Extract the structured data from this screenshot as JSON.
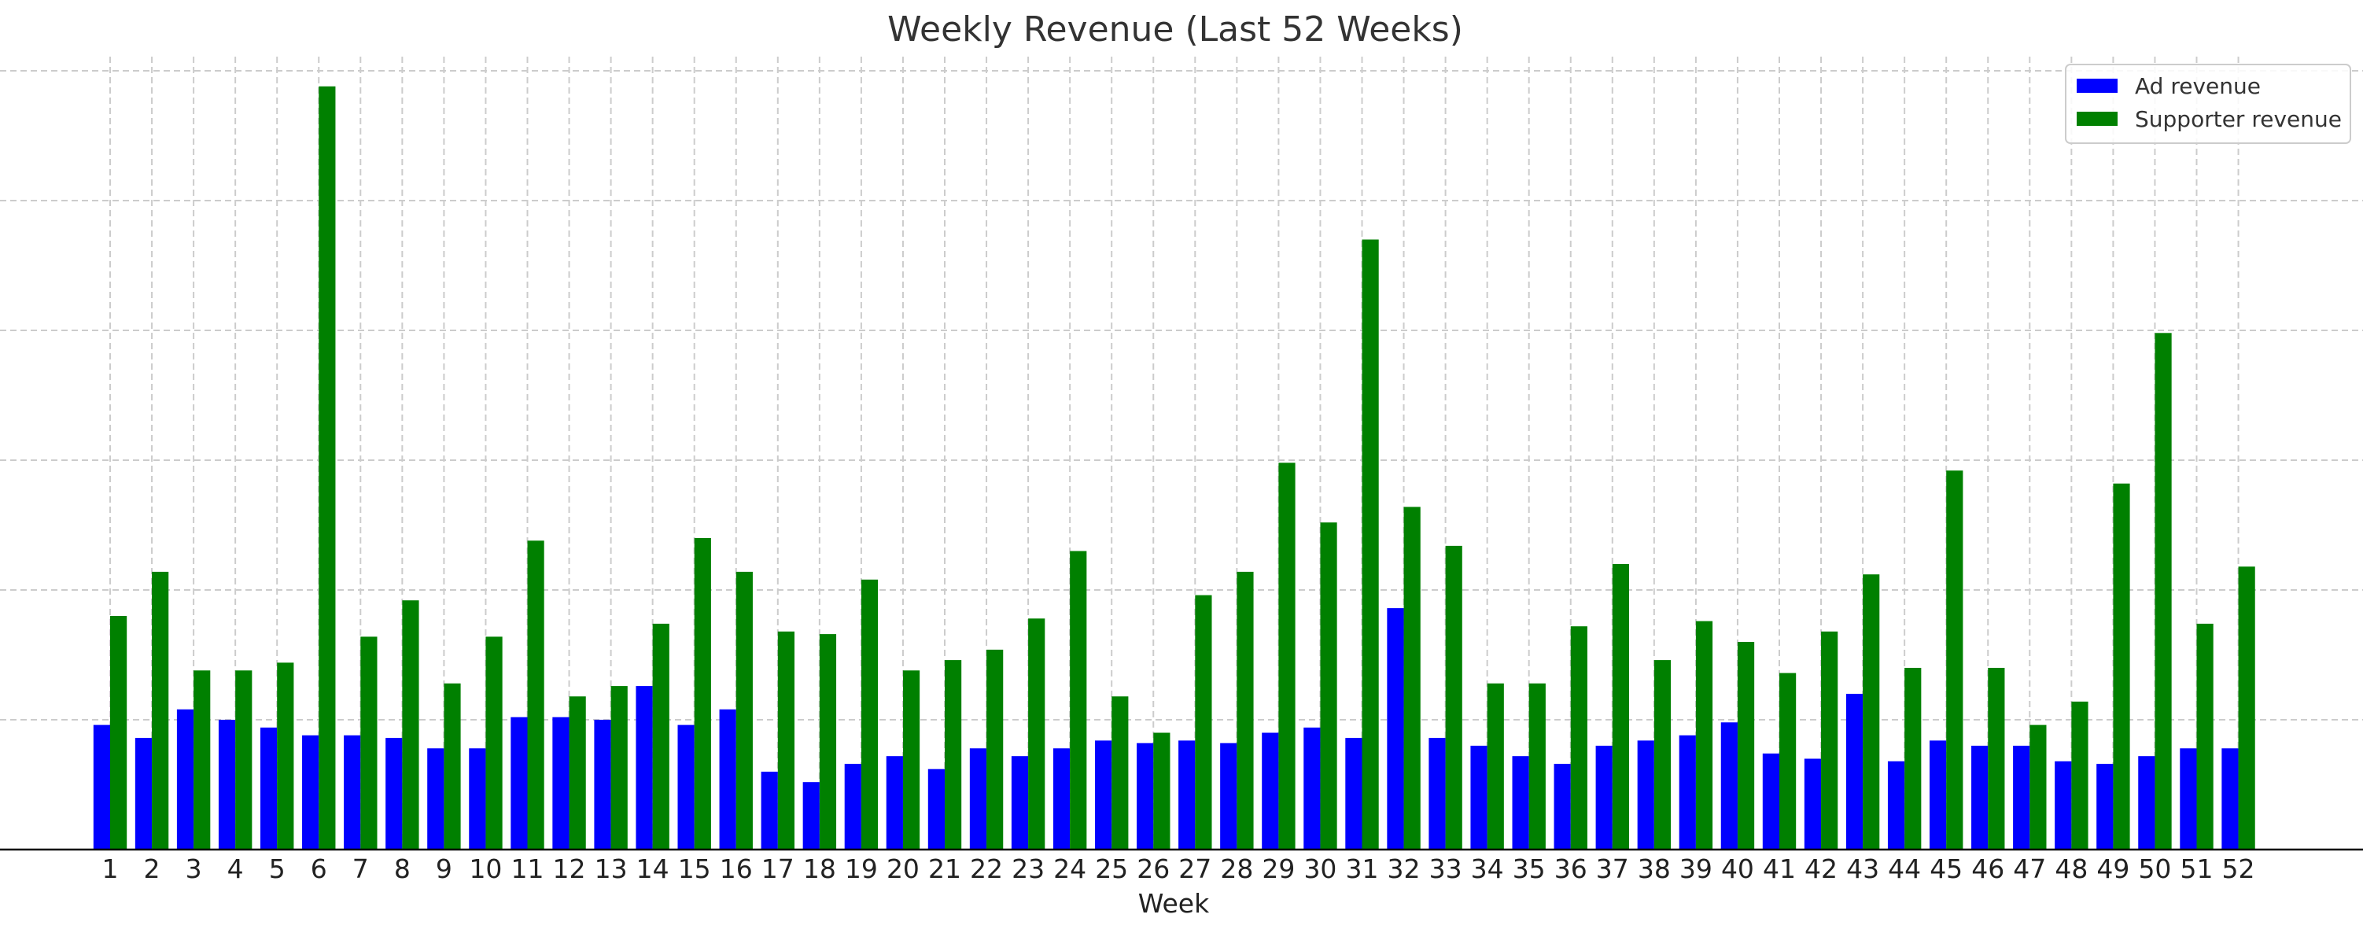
{
  "chart_data": {
    "type": "bar",
    "title": "Weekly Revenue (Last 52 Weeks)",
    "xlabel": "Week",
    "ylabel": "",
    "ylim": [
      0,
      300
    ],
    "grid": true,
    "legend_position": "top-right",
    "categories": [
      "1",
      "2",
      "3",
      "4",
      "5",
      "6",
      "7",
      "8",
      "9",
      "10",
      "11",
      "12",
      "13",
      "14",
      "15",
      "16",
      "17",
      "18",
      "19",
      "20",
      "21",
      "22",
      "23",
      "24",
      "25",
      "26",
      "27",
      "28",
      "29",
      "30",
      "31",
      "32",
      "33",
      "34",
      "35",
      "36",
      "37",
      "38",
      "39",
      "40",
      "41",
      "42",
      "43",
      "44",
      "45",
      "46",
      "47",
      "48",
      "49",
      "50",
      "51",
      "52"
    ],
    "series": [
      {
        "name": "Ad revenue",
        "color": "#0000ff",
        "values": [
          48,
          43,
          54,
          50,
          47,
          44,
          44,
          43,
          39,
          39,
          51,
          51,
          50,
          63,
          48,
          54,
          30,
          26,
          33,
          36,
          31,
          39,
          36,
          39,
          42,
          41,
          42,
          41,
          45,
          47,
          43,
          93,
          43,
          40,
          36,
          33,
          40,
          42,
          44,
          49,
          37,
          35,
          60,
          34,
          42,
          40,
          40,
          34,
          33,
          36,
          39,
          39
        ]
      },
      {
        "name": "Supporter revenue",
        "color": "#008000",
        "values": [
          90,
          107,
          69,
          69,
          72,
          294,
          82,
          96,
          64,
          82,
          119,
          59,
          63,
          87,
          120,
          107,
          84,
          83,
          104,
          69,
          73,
          77,
          89,
          115,
          59,
          45,
          98,
          107,
          149,
          126,
          235,
          132,
          117,
          64,
          64,
          86,
          110,
          73,
          88,
          80,
          68,
          84,
          106,
          70,
          146,
          70,
          48,
          57,
          141,
          199,
          87,
          109
        ]
      }
    ]
  }
}
